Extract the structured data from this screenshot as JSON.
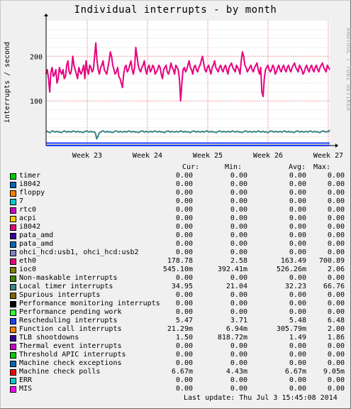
{
  "chart_data": {
    "type": "line",
    "title": "Individual interrupts - by month",
    "ylabel": "interrupts / second",
    "ylim": [
      0,
      280
    ],
    "yticks": [
      100,
      200
    ],
    "xticks": [
      "Week 23",
      "Week 24",
      "Week 25",
      "Week 26",
      "Week 27"
    ],
    "side_credit": "RRDTOOL / TOBI OETIKER",
    "grid": true,
    "series": [
      {
        "name": "eth0",
        "color": "#e6007e",
        "values": [
          160,
          170,
          150,
          120,
          165,
          175,
          155,
          160,
          170,
          140,
          150,
          175,
          165,
          160,
          170,
          150,
          155,
          180,
          190,
          165,
          160,
          170,
          200,
          180,
          170,
          160,
          150,
          175,
          165,
          160,
          170,
          180,
          150,
          190,
          170,
          160,
          180,
          175,
          165,
          170,
          200,
          230,
          190,
          170,
          160,
          175,
          180,
          190,
          170,
          165,
          160,
          175,
          190,
          210,
          200,
          180,
          170,
          160,
          165,
          175,
          155,
          150,
          140,
          130,
          160,
          175,
          180,
          165,
          170,
          180,
          190,
          170,
          160,
          175,
          220,
          200,
          180,
          170,
          165,
          175,
          180,
          190,
          170,
          160,
          175,
          180,
          165,
          170,
          180,
          175,
          160,
          165,
          170,
          180,
          175,
          160,
          150,
          170,
          175,
          180,
          165,
          160,
          170,
          185,
          175,
          170,
          160,
          180,
          175,
          170,
          150,
          100,
          140,
          170,
          175,
          165,
          170,
          180,
          190,
          175,
          170,
          160,
          175,
          180,
          170,
          165,
          175,
          180,
          190,
          200,
          185,
          170,
          165,
          175,
          180,
          170,
          160,
          175,
          180,
          190,
          175,
          170,
          165,
          175,
          180,
          170,
          165,
          175,
          180,
          170,
          160,
          175,
          180,
          185,
          175,
          170,
          165,
          180,
          175,
          170,
          160,
          190,
          210,
          200,
          180,
          175,
          165,
          170,
          175,
          180,
          170,
          165,
          175,
          180,
          185,
          170,
          160,
          175,
          120,
          110,
          150,
          170,
          175,
          180,
          170,
          165,
          170,
          180,
          175,
          160,
          165,
          175,
          180,
          170,
          165,
          175,
          180,
          170,
          165,
          175,
          180,
          170,
          165,
          175,
          180,
          185,
          175,
          170,
          165,
          180,
          175,
          170,
          160,
          165,
          175,
          180,
          170,
          165,
          175,
          180,
          170,
          165,
          175,
          180,
          170,
          165,
          175,
          180,
          185,
          175,
          170,
          165,
          180,
          175,
          170
        ]
      },
      {
        "name": "Local timer interrupts",
        "color": "#3e8585",
        "values": [
          31,
          32,
          30,
          29,
          31,
          33,
          32,
          30,
          31,
          32,
          30,
          31,
          29,
          30,
          32,
          33,
          31,
          30,
          32,
          31,
          30,
          31,
          33,
          32,
          30,
          31,
          32,
          30,
          31,
          30,
          29,
          31,
          32,
          33,
          31,
          30,
          32,
          31,
          30,
          31,
          28,
          15,
          20,
          28,
          30,
          31,
          33,
          32,
          30,
          31,
          32,
          30,
          31,
          30,
          29,
          31,
          32,
          33,
          31,
          30,
          32,
          31,
          30,
          31,
          32,
          30,
          31,
          33,
          32,
          30,
          31,
          32,
          30,
          31,
          30,
          29,
          31,
          32,
          33,
          31,
          30,
          32,
          31,
          30,
          31,
          32,
          30,
          31,
          33,
          32,
          30,
          31,
          32,
          30,
          31,
          30,
          29,
          31,
          32,
          33,
          31,
          30,
          32,
          31,
          30,
          31,
          32,
          30,
          31,
          33,
          32,
          30,
          31,
          32,
          30,
          31,
          30,
          29,
          31,
          32,
          33,
          31,
          30,
          32,
          31,
          30,
          31,
          32,
          30,
          31,
          33,
          32,
          30,
          31,
          32,
          30,
          31,
          30,
          29,
          31,
          32,
          33,
          31,
          30,
          32,
          31,
          30,
          31,
          32,
          30,
          31,
          33,
          32,
          30,
          31,
          32,
          30,
          31,
          30,
          29,
          31,
          32,
          33,
          31,
          30,
          32,
          31,
          30,
          31,
          32,
          30,
          31,
          33,
          32,
          30,
          31,
          32,
          30,
          31,
          30,
          29,
          31,
          32,
          33,
          31,
          30,
          32,
          31,
          30,
          31,
          32,
          30,
          31,
          33,
          32,
          30,
          31,
          32,
          30,
          31,
          30,
          29,
          31,
          32,
          33,
          31,
          30,
          32,
          31,
          30,
          31,
          32,
          30,
          31,
          33,
          32,
          30,
          31,
          32,
          30,
          31,
          30,
          29,
          31,
          32,
          33,
          31,
          30,
          32,
          31,
          35
        ]
      },
      {
        "name": "ioc0",
        "color": "#7f7f00",
        "values": [
          0.5
        ]
      },
      {
        "name": "Rescheduling interrupts",
        "color": "#1d3ffc",
        "values": [
          5.5
        ]
      }
    ]
  },
  "legend": {
    "col_headers": [
      "Cur:",
      "Min:",
      "Avg:",
      "Max:"
    ],
    "rows": [
      {
        "name": "timer",
        "color": "#00cc00",
        "cur": "0.00",
        "min": "0.00",
        "avg": "0.00",
        "max": "0.00"
      },
      {
        "name": "i8042",
        "color": "#0066b3",
        "cur": "0.00",
        "min": "0.00",
        "avg": "0.00",
        "max": "0.00"
      },
      {
        "name": "floppy",
        "color": "#ff8000",
        "cur": "0.00",
        "min": "0.00",
        "avg": "0.00",
        "max": "0.00"
      },
      {
        "name": "7",
        "color": "#00cccc",
        "cur": "0.00",
        "min": "0.00",
        "avg": "0.00",
        "max": "0.00"
      },
      {
        "name": "rtc0",
        "color": "#cc00cc",
        "cur": "0.00",
        "min": "0.00",
        "avg": "0.00",
        "max": "0.00"
      },
      {
        "name": "acpi",
        "color": "#ffcc00",
        "cur": "0.00",
        "min": "0.00",
        "avg": "0.00",
        "max": "0.00"
      },
      {
        "name": "i8042",
        "color": "#e6007e",
        "cur": "0.00",
        "min": "0.00",
        "avg": "0.00",
        "max": "0.00"
      },
      {
        "name": "pata_amd",
        "color": "#330099",
        "cur": "0.00",
        "min": "0.00",
        "avg": "0.00",
        "max": "0.00"
      },
      {
        "name": "pata_amd",
        "color": "#0066b3",
        "cur": "0.00",
        "min": "0.00",
        "avg": "0.00",
        "max": "0.00"
      },
      {
        "name": "ohci_hcd:usb1, ohci_hcd:usb2",
        "color": "#8080c0",
        "cur": "0.00",
        "min": "0.00",
        "avg": "0.00",
        "max": "0.00"
      },
      {
        "name": "eth0",
        "color": "#e6007e",
        "cur": "178.78",
        "min": "2.58",
        "avg": "163.49",
        "max": "700.89"
      },
      {
        "name": "ioc0",
        "color": "#7f7f00",
        "cur": "545.10m",
        "min": "392.41m",
        "avg": "526.26m",
        "max": "2.06"
      },
      {
        "name": "Non-maskable interrupts",
        "color": "#408000",
        "cur": "0.00",
        "min": "0.00",
        "avg": "0.00",
        "max": "0.00"
      },
      {
        "name": "Local timer interrupts",
        "color": "#3e8585",
        "cur": "34.95",
        "min": "21.04",
        "avg": "32.23",
        "max": "66.76"
      },
      {
        "name": "Spurious interrupts",
        "color": "#806600",
        "cur": "0.00",
        "min": "0.00",
        "avg": "0.00",
        "max": "0.00"
      },
      {
        "name": "Performance monitoring interrupts",
        "color": "#000000",
        "cur": "0.00",
        "min": "0.00",
        "avg": "0.00",
        "max": "0.00"
      },
      {
        "name": "Performance pending work",
        "color": "#33ff33",
        "cur": "0.00",
        "min": "0.00",
        "avg": "0.00",
        "max": "0.00"
      },
      {
        "name": "Rescheduling interrupts",
        "color": "#1d3ffc",
        "cur": "5.47",
        "min": "3.71",
        "avg": "5.48",
        "max": "6.48"
      },
      {
        "name": "Function call interrupts",
        "color": "#ff8000",
        "cur": "21.29m",
        "min": "6.94m",
        "avg": "305.79m",
        "max": "2.00"
      },
      {
        "name": "TLB shootdowns",
        "color": "#330099",
        "cur": "1.50",
        "min": "818.72m",
        "avg": "1.49",
        "max": "1.86"
      },
      {
        "name": "Thermal event interrupts",
        "color": "#cc00cc",
        "cur": "0.00",
        "min": "0.00",
        "avg": "0.00",
        "max": "0.00"
      },
      {
        "name": "Threshold APIC interrupts",
        "color": "#00cc00",
        "cur": "0.00",
        "min": "0.00",
        "avg": "0.00",
        "max": "0.00"
      },
      {
        "name": "Machine check exceptions",
        "color": "#0066b3",
        "cur": "0.00",
        "min": "0.00",
        "avg": "0.00",
        "max": "0.00"
      },
      {
        "name": "Machine check polls",
        "color": "#ff0000",
        "cur": "6.67m",
        "min": "4.43m",
        "avg": "6.67m",
        "max": "9.05m"
      },
      {
        "name": "ERR",
        "color": "#00cccc",
        "cur": "0.00",
        "min": "0.00",
        "avg": "0.00",
        "max": "0.00"
      },
      {
        "name": "MIS",
        "color": "#ff00ff",
        "cur": "0.00",
        "min": "0.00",
        "avg": "0.00",
        "max": "0.00"
      }
    ]
  },
  "footer": "Last update:  Thu Jul  3 15:45:08 2014"
}
